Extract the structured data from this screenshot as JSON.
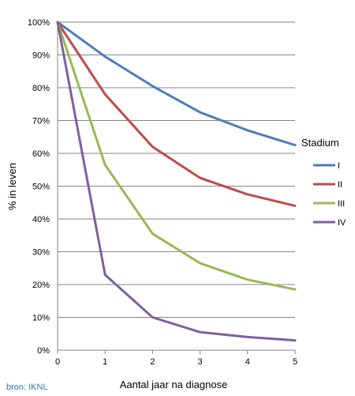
{
  "chart_data": {
    "type": "line",
    "x": [
      0,
      1,
      2,
      3,
      4,
      5
    ],
    "xlabel": "Aantal jaar na diagnose",
    "ylabel": "% in leven",
    "xlim": [
      0,
      5
    ],
    "ylim": [
      0,
      100
    ],
    "x_ticks": [
      "0",
      "1",
      "2",
      "3",
      "4",
      "5"
    ],
    "y_ticks": [
      "0%",
      "10%",
      "20%",
      "30%",
      "40%",
      "50%",
      "60%",
      "70%",
      "80%",
      "90%",
      "100%"
    ],
    "y_tick_values": [
      0,
      10,
      20,
      30,
      40,
      50,
      60,
      70,
      80,
      90,
      100
    ],
    "grid": "horizontal",
    "legend_title": "Stadium",
    "legend_placement": "right",
    "series": [
      {
        "name": "I",
        "color": "#4a7ebb",
        "values": [
          100,
          89.5,
          80.5,
          72.5,
          67,
          62.5
        ]
      },
      {
        "name": "II",
        "color": "#be4b48",
        "values": [
          100,
          78,
          62,
          52.5,
          47.5,
          44
        ]
      },
      {
        "name": "III",
        "color": "#98b954",
        "values": [
          100,
          56.5,
          35.5,
          26.5,
          21.5,
          18.5
        ]
      },
      {
        "name": "IV",
        "color": "#7d60a0",
        "values": [
          100,
          23,
          10,
          5.5,
          4,
          3
        ]
      }
    ]
  },
  "source": "bron: IKNL"
}
